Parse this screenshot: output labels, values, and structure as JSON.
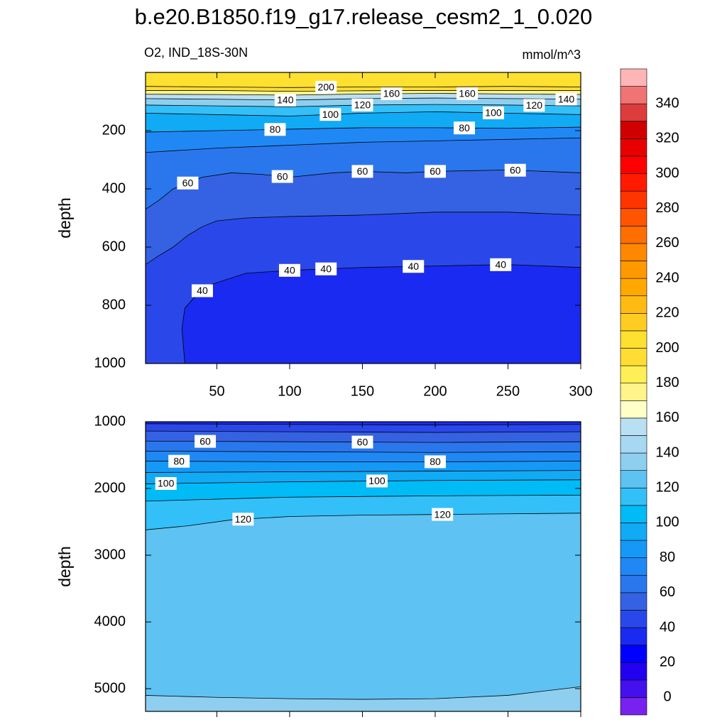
{
  "title": "b.e20.B1850.f19_g17.release_cesm2_1_0.020",
  "chart_data": [
    {
      "type": "contour",
      "subtitle": "O2, IND_18S-30N",
      "units": "mmol/m^3",
      "ylabel": "depth",
      "xlim": [
        1,
        300
      ],
      "ylim": [
        0,
        1000
      ],
      "xticks": [
        50,
        100,
        150,
        200,
        250,
        300
      ],
      "yticks": [
        200,
        400,
        600,
        800,
        1000
      ],
      "xtick_labels": true,
      "direction": "decreasing",
      "contours": [
        {
          "level": 200,
          "x": [
            1,
            50,
            100,
            150,
            200,
            250,
            300
          ],
          "depth": [
            48,
            50,
            52,
            50,
            50,
            48,
            50
          ],
          "label_x": [
            125
          ]
        },
        {
          "level": 180,
          "x": [
            1,
            50,
            100,
            150,
            200,
            250,
            300
          ],
          "depth": [
            62,
            62,
            65,
            63,
            62,
            62,
            62
          ],
          "label_x": []
        },
        {
          "level": 160,
          "x": [
            1,
            50,
            100,
            150,
            200,
            250,
            300
          ],
          "depth": [
            75,
            76,
            78,
            74,
            72,
            74,
            76
          ],
          "label_x": [
            170,
            222
          ]
        },
        {
          "level": 140,
          "x": [
            1,
            50,
            100,
            150,
            200,
            250,
            300
          ],
          "depth": [
            90,
            92,
            95,
            90,
            88,
            90,
            92
          ],
          "label_x": [
            97,
            290
          ]
        },
        {
          "level": 120,
          "x": [
            1,
            50,
            100,
            150,
            200,
            250,
            300
          ],
          "depth": [
            112,
            115,
            118,
            112,
            110,
            112,
            115
          ],
          "label_x": [
            150,
            268
          ]
        },
        {
          "level": 100,
          "x": [
            1,
            50,
            100,
            150,
            200,
            250,
            300
          ],
          "depth": [
            140,
            145,
            150,
            140,
            135,
            140,
            145
          ],
          "label_x": [
            128,
            240
          ]
        },
        {
          "level": 80,
          "x": [
            1,
            50,
            100,
            150,
            200,
            250,
            300
          ],
          "depth": [
            205,
            200,
            195,
            190,
            190,
            192,
            188
          ],
          "label_x": [
            90,
            220
          ]
        },
        {
          "level": 70,
          "x": [
            1,
            50,
            100,
            150,
            200,
            250,
            300
          ],
          "depth": [
            275,
            260,
            250,
            240,
            235,
            230,
            225
          ],
          "label_x": []
        },
        {
          "level": 60,
          "x": [
            1,
            10,
            20,
            30,
            40,
            60,
            80,
            100,
            130,
            150,
            180,
            200,
            250,
            300
          ],
          "depth": [
            470,
            440,
            400,
            380,
            360,
            345,
            350,
            360,
            345,
            340,
            345,
            340,
            335,
            345
          ],
          "label_x": [
            30,
            95,
            150,
            200,
            255
          ]
        },
        {
          "level": 50,
          "x": [
            1,
            10,
            20,
            30,
            40,
            50,
            70,
            100,
            150,
            200,
            250,
            300
          ],
          "depth": [
            660,
            630,
            600,
            560,
            530,
            510,
            500,
            495,
            490,
            480,
            480,
            490
          ],
          "label_x": []
        },
        {
          "level": 40,
          "x": [
            28,
            26,
            28,
            35,
            45,
            70,
            100,
            150,
            200,
            250,
            300
          ],
          "depth": [
            1000,
            880,
            810,
            770,
            730,
            690,
            680,
            670,
            665,
            660,
            670
          ],
          "label_x": [
            40,
            100,
            125,
            185,
            245
          ]
        }
      ]
    },
    {
      "type": "contour",
      "ylabel": "depth",
      "xlim": [
        1,
        300
      ],
      "ylim": [
        1000,
        5340
      ],
      "xticks": [
        50,
        100,
        150,
        200,
        250,
        300
      ],
      "yticks": [
        1000,
        2000,
        3000,
        4000,
        5000
      ],
      "xtick_labels": false,
      "direction": "increasing",
      "contours": [
        {
          "level": 40,
          "x": [
            1,
            100,
            200,
            300
          ],
          "depth": [
            1030,
            1040,
            1050,
            1040
          ],
          "label_x": []
        },
        {
          "level": 50,
          "x": [
            1,
            100,
            200,
            300
          ],
          "depth": [
            1140,
            1150,
            1160,
            1150
          ],
          "label_x": []
        },
        {
          "level": 60,
          "x": [
            1,
            100,
            200,
            300
          ],
          "depth": [
            1290,
            1300,
            1310,
            1300
          ],
          "label_x": [
            42,
            150
          ]
        },
        {
          "level": 70,
          "x": [
            1,
            100,
            200,
            300
          ],
          "depth": [
            1440,
            1450,
            1460,
            1450
          ],
          "label_x": []
        },
        {
          "level": 80,
          "x": [
            1,
            100,
            200,
            300
          ],
          "depth": [
            1590,
            1600,
            1600,
            1590
          ],
          "label_x": [
            24,
            200
          ]
        },
        {
          "level": 90,
          "x": [
            1,
            100,
            200,
            300
          ],
          "depth": [
            1760,
            1750,
            1740,
            1730
          ],
          "label_x": []
        },
        {
          "level": 100,
          "x": [
            1,
            100,
            200,
            300
          ],
          "depth": [
            1930,
            1900,
            1880,
            1870
          ],
          "label_x": [
            15,
            160
          ]
        },
        {
          "level": 110,
          "x": [
            1,
            100,
            200,
            300
          ],
          "depth": [
            2190,
            2130,
            2110,
            2100
          ],
          "label_x": []
        },
        {
          "level": 120,
          "x": [
            1,
            30,
            60,
            100,
            150,
            200,
            250,
            300
          ],
          "depth": [
            2620,
            2560,
            2470,
            2420,
            2400,
            2390,
            2380,
            2370
          ],
          "label_x": [
            68,
            205
          ]
        },
        {
          "level": 130,
          "x": [
            1,
            50,
            100,
            150,
            200,
            250,
            300
          ],
          "depth": [
            5100,
            5130,
            5150,
            5160,
            5150,
            5100,
            4970
          ],
          "label_x": []
        }
      ]
    }
  ],
  "colorbar": {
    "levels": [
      0,
      10,
      20,
      30,
      40,
      50,
      60,
      70,
      80,
      90,
      100,
      110,
      120,
      130,
      140,
      150,
      160,
      170,
      180,
      190,
      200,
      210,
      220,
      230,
      240,
      250,
      260,
      270,
      280,
      290,
      300,
      310,
      320,
      330,
      340,
      350
    ],
    "colors": [
      "#7722ee",
      "#4411ee",
      "#2200f0",
      "#0000ff",
      "#1a2af0",
      "#2a48ea",
      "#3562e2",
      "#2a77ed",
      "#1f88f5",
      "#1599f7",
      "#11aaf5",
      "#00bbf5",
      "#33c0f8",
      "#5ec2f3",
      "#8ecff0",
      "#a6d8f2",
      "#b9e0f2",
      "#ffffc8",
      "#fff48a",
      "#ffee55",
      "#ffdd33",
      "#fee030",
      "#ffcc22",
      "#ffbb11",
      "#ffa800",
      "#ff9900",
      "#ff8800",
      "#ff6e00",
      "#ff5500",
      "#ff3500",
      "#ff1a00",
      "#ff0000",
      "#e80000",
      "#d00000",
      "#dc3c3c",
      "#f07474",
      "#fdb5b5"
    ]
  }
}
